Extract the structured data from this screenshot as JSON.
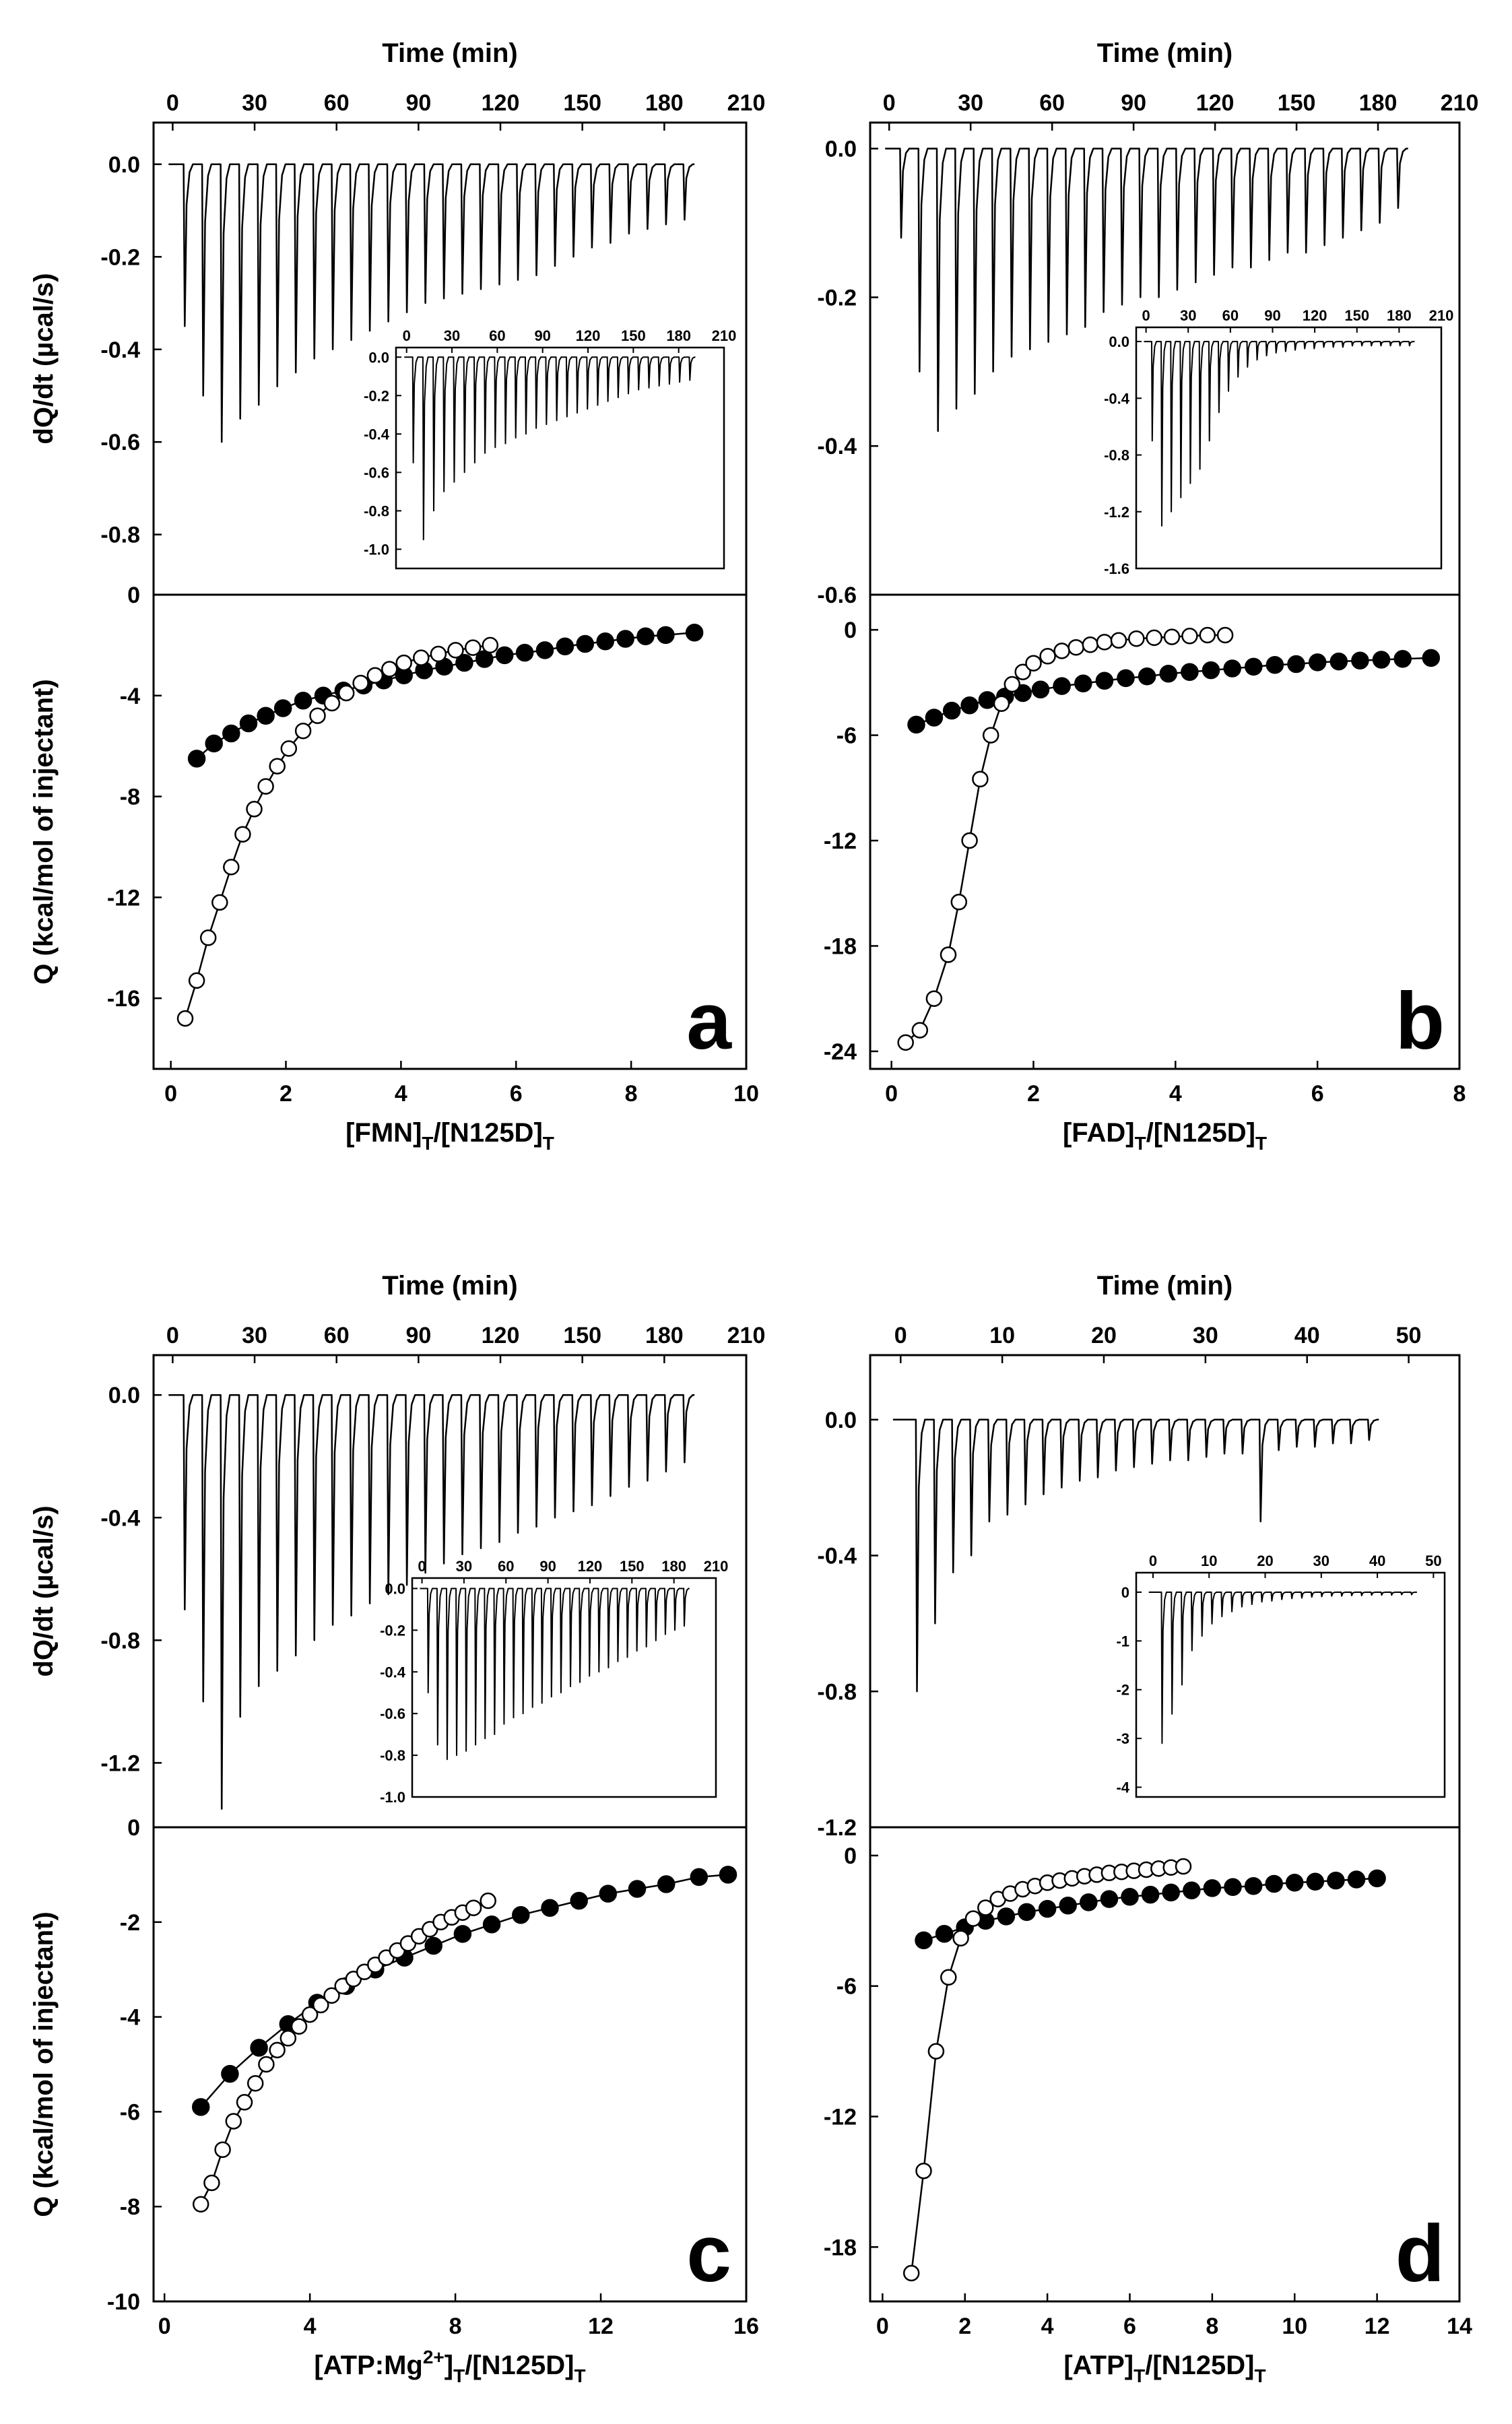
{
  "chart_data": [
    {
      "panel": "a",
      "type": "line",
      "top": {
        "xlabel": "Time (min)",
        "ylabel": "dQ/dt (µcal/s)",
        "xlim": [
          -7,
          210
        ],
        "xticks": [
          0,
          30,
          60,
          90,
          120,
          150,
          180,
          210
        ],
        "ylim": [
          -0.93,
          0.09
        ],
        "yticks": [
          0.0,
          -0.2,
          -0.4,
          -0.6,
          -0.8
        ],
        "n_injections": 28,
        "t_start": 4,
        "t_end": 187,
        "peaks": [
          -0.35,
          -0.5,
          -0.6,
          -0.55,
          -0.52,
          -0.48,
          -0.45,
          -0.42,
          -0.4,
          -0.38,
          -0.36,
          -0.34,
          -0.32,
          -0.3,
          -0.29,
          -0.28,
          -0.27,
          -0.26,
          -0.25,
          -0.24,
          -0.22,
          -0.2,
          -0.18,
          -0.17,
          -0.15,
          -0.14,
          -0.13,
          -0.12
        ],
        "inset": {
          "xlim": [
            -7,
            210
          ],
          "xticks": [
            0,
            30,
            60,
            90,
            120,
            150,
            180,
            210
          ],
          "ylim": [
            -1.1,
            0.05
          ],
          "yticks": [
            0.0,
            -0.2,
            -0.4,
            -0.6,
            -0.8,
            -1.0
          ],
          "n_injections": 28,
          "t_start": 4,
          "t_end": 187,
          "peaks": [
            -0.55,
            -0.95,
            -0.8,
            -0.7,
            -0.65,
            -0.6,
            -0.55,
            -0.5,
            -0.47,
            -0.45,
            -0.42,
            -0.4,
            -0.37,
            -0.35,
            -0.33,
            -0.31,
            -0.29,
            -0.27,
            -0.25,
            -0.23,
            -0.21,
            -0.19,
            -0.17,
            -0.16,
            -0.15,
            -0.14,
            -0.13,
            -0.12
          ]
        }
      },
      "bottom": {
        "xlabel": "[FMN]",
        "xlabel_sub": "T",
        "xlabel_mid": "/[N125D]",
        "xlabel_sub2": "T",
        "ylabel": "Q (kcal/mol of injectant)",
        "xlim": [
          -0.3,
          10
        ],
        "xticks": [
          0,
          2,
          4,
          6,
          8,
          10
        ],
        "ylim": [
          -18.8,
          0
        ],
        "yticks": [
          0,
          -4,
          -8,
          -12,
          -16
        ],
        "series": [
          {
            "name": "filled",
            "marker": "filled",
            "x": [
              0.45,
              0.75,
              1.05,
              1.35,
              1.65,
              1.95,
              2.3,
              2.65,
              3.0,
              3.35,
              3.7,
              4.05,
              4.4,
              4.75,
              5.1,
              5.45,
              5.8,
              6.15,
              6.5,
              6.85,
              7.2,
              7.55,
              7.9,
              8.25,
              8.6,
              9.1
            ],
            "y": [
              -6.5,
              -5.9,
              -5.5,
              -5.1,
              -4.8,
              -4.5,
              -4.2,
              -4.0,
              -3.8,
              -3.6,
              -3.4,
              -3.2,
              -3.0,
              -2.85,
              -2.7,
              -2.55,
              -2.4,
              -2.3,
              -2.2,
              -2.05,
              -1.95,
              -1.85,
              -1.75,
              -1.65,
              -1.6,
              -1.5
            ]
          },
          {
            "name": "open",
            "marker": "open",
            "x": [
              0.25,
              0.45,
              0.65,
              0.85,
              1.05,
              1.25,
              1.45,
              1.65,
              1.85,
              2.05,
              2.3,
              2.55,
              2.8,
              3.05,
              3.3,
              3.55,
              3.8,
              4.05,
              4.35,
              4.65,
              4.95,
              5.25,
              5.55
            ],
            "y": [
              -16.8,
              -15.3,
              -13.6,
              -12.2,
              -10.8,
              -9.5,
              -8.5,
              -7.6,
              -6.8,
              -6.1,
              -5.4,
              -4.8,
              -4.3,
              -3.9,
              -3.5,
              -3.2,
              -2.95,
              -2.7,
              -2.5,
              -2.35,
              -2.2,
              -2.1,
              -2.0
            ]
          }
        ],
        "label": "a"
      }
    },
    {
      "panel": "b",
      "type": "line",
      "top": {
        "xlabel": "Time (min)",
        "ylabel": "",
        "xlim": [
          -7,
          210
        ],
        "xticks": [
          0,
          30,
          60,
          90,
          120,
          150,
          180,
          210
        ],
        "ylim": [
          -0.6,
          0.035
        ],
        "yticks": [
          0.0,
          -0.2,
          -0.4,
          -0.6
        ],
        "n_injections": 28,
        "t_start": 4,
        "t_end": 187,
        "peaks": [
          -0.12,
          -0.3,
          -0.38,
          -0.35,
          -0.33,
          -0.3,
          -0.28,
          -0.27,
          -0.26,
          -0.25,
          -0.24,
          -0.22,
          -0.21,
          -0.2,
          -0.2,
          -0.19,
          -0.18,
          -0.17,
          -0.16,
          -0.16,
          -0.15,
          -0.14,
          -0.14,
          -0.13,
          -0.12,
          -0.11,
          -0.1,
          -0.08
        ],
        "inset": {
          "xlim": [
            -7,
            210
          ],
          "xticks": [
            0,
            30,
            60,
            90,
            120,
            150,
            180,
            210
          ],
          "ylim": [
            -1.6,
            0.1
          ],
          "yticks": [
            0.0,
            -0.4,
            -0.8,
            -1.2,
            -1.6
          ],
          "n_injections": 28,
          "t_start": 4,
          "t_end": 187,
          "peaks": [
            -0.7,
            -1.3,
            -1.2,
            -1.1,
            -1.0,
            -0.9,
            -0.7,
            -0.5,
            -0.35,
            -0.25,
            -0.18,
            -0.13,
            -0.1,
            -0.08,
            -0.07,
            -0.06,
            -0.05,
            -0.05,
            -0.04,
            -0.04,
            -0.04,
            -0.03,
            -0.03,
            -0.03,
            -0.03,
            -0.03,
            -0.03,
            -0.03
          ]
        }
      },
      "bottom": {
        "xlabel": "[FAD]",
        "xlabel_sub": "T",
        "xlabel_mid": "/[N125D]",
        "xlabel_sub2": "T",
        "ylabel": "",
        "xlim": [
          -0.3,
          8
        ],
        "xticks": [
          0,
          2,
          4,
          6,
          8
        ],
        "ylim": [
          -25,
          2
        ],
        "yticks": [
          0,
          -6,
          -12,
          -18,
          -24
        ],
        "series": [
          {
            "name": "filled",
            "marker": "filled",
            "x": [
              0.35,
              0.6,
              0.85,
              1.1,
              1.35,
              1.6,
              1.85,
              2.1,
              2.4,
              2.7,
              3.0,
              3.3,
              3.6,
              3.9,
              4.2,
              4.5,
              4.8,
              5.1,
              5.4,
              5.7,
              6.0,
              6.3,
              6.6,
              6.9,
              7.2,
              7.6
            ],
            "y": [
              -5.4,
              -5.0,
              -4.6,
              -4.3,
              -4.0,
              -3.8,
              -3.6,
              -3.4,
              -3.2,
              -3.05,
              -2.9,
              -2.75,
              -2.65,
              -2.5,
              -2.4,
              -2.3,
              -2.2,
              -2.1,
              -2.0,
              -1.95,
              -1.85,
              -1.8,
              -1.75,
              -1.7,
              -1.65,
              -1.6
            ]
          },
          {
            "name": "open",
            "marker": "open",
            "x": [
              0.2,
              0.4,
              0.6,
              0.8,
              0.95,
              1.1,
              1.25,
              1.4,
              1.55,
              1.7,
              1.85,
              2.0,
              2.2,
              2.4,
              2.6,
              2.8,
              3.0,
              3.2,
              3.45,
              3.7,
              3.95,
              4.2,
              4.45,
              4.7
            ],
            "y": [
              -23.5,
              -22.8,
              -21.0,
              -18.5,
              -15.5,
              -12.0,
              -8.5,
              -6.0,
              -4.2,
              -3.1,
              -2.4,
              -1.9,
              -1.5,
              -1.2,
              -1.0,
              -0.85,
              -0.7,
              -0.6,
              -0.5,
              -0.45,
              -0.4,
              -0.35,
              -0.3,
              -0.3
            ]
          }
        ],
        "label": "b"
      }
    },
    {
      "panel": "c",
      "type": "line",
      "top": {
        "xlabel": "Time (min)",
        "ylabel": "dQ/dt (µcal/s)",
        "xlim": [
          -7,
          210
        ],
        "xticks": [
          0,
          30,
          60,
          90,
          120,
          150,
          180,
          210
        ],
        "ylim": [
          -1.41,
          0.13
        ],
        "yticks": [
          0.0,
          -0.4,
          -0.8,
          -1.2
        ],
        "n_injections": 28,
        "t_start": 4,
        "t_end": 187,
        "peaks": [
          -0.7,
          -1.0,
          -1.35,
          -1.05,
          -0.95,
          -0.9,
          -0.85,
          -0.8,
          -0.75,
          -0.72,
          -0.68,
          -0.65,
          -0.62,
          -0.58,
          -0.55,
          -0.52,
          -0.5,
          -0.48,
          -0.45,
          -0.43,
          -0.4,
          -0.38,
          -0.36,
          -0.33,
          -0.3,
          -0.28,
          -0.25,
          -0.22
        ],
        "inset": {
          "xlim": [
            -7,
            210
          ],
          "xticks": [
            0,
            30,
            60,
            90,
            120,
            150,
            180,
            210
          ],
          "ylim": [
            -1.0,
            0.05
          ],
          "yticks": [
            0.0,
            -0.2,
            -0.4,
            -0.6,
            -0.8,
            -1.0
          ],
          "n_injections": 28,
          "t_start": 4,
          "t_end": 187,
          "peaks": [
            -0.5,
            -0.75,
            -0.82,
            -0.8,
            -0.78,
            -0.75,
            -0.72,
            -0.7,
            -0.65,
            -0.62,
            -0.6,
            -0.57,
            -0.55,
            -0.52,
            -0.5,
            -0.47,
            -0.45,
            -0.42,
            -0.4,
            -0.38,
            -0.35,
            -0.33,
            -0.3,
            -0.28,
            -0.25,
            -0.22,
            -0.2,
            -0.18
          ]
        }
      },
      "bottom": {
        "xlabel": "[ATP:Mg",
        "xlabel_sup": "2+",
        "xlabel_close": "]",
        "xlabel_sub": "T",
        "xlabel_mid": "/[N125D]",
        "xlabel_sub2": "T",
        "ylabel": "Q (kcal/mol of injectant)",
        "xlim": [
          -0.3,
          16
        ],
        "xticks": [
          0,
          4,
          8,
          12,
          16
        ],
        "ylim": [
          -10,
          0
        ],
        "yticks": [
          0,
          -2,
          -4,
          -6,
          -8,
          -10
        ],
        "series": [
          {
            "name": "filled",
            "marker": "filled",
            "x": [
              1.0,
              1.8,
              2.6,
              3.4,
              4.2,
              5.0,
              5.8,
              6.6,
              7.4,
              8.2,
              9.0,
              9.8,
              10.6,
              11.4,
              12.2,
              13.0,
              13.8,
              14.7,
              15.5
            ],
            "y": [
              -5.9,
              -5.2,
              -4.65,
              -4.15,
              -3.7,
              -3.35,
              -3.0,
              -2.75,
              -2.5,
              -2.25,
              -2.05,
              -1.85,
              -1.7,
              -1.55,
              -1.4,
              -1.3,
              -1.2,
              -1.05,
              -1.0
            ]
          },
          {
            "name": "open",
            "marker": "open",
            "x": [
              1.0,
              1.3,
              1.6,
              1.9,
              2.2,
              2.5,
              2.8,
              3.1,
              3.4,
              3.7,
              4.0,
              4.3,
              4.6,
              4.9,
              5.2,
              5.5,
              5.8,
              6.1,
              6.4,
              6.7,
              7.0,
              7.3,
              7.6,
              7.9,
              8.2,
              8.5,
              8.9
            ],
            "y": [
              -7.95,
              -7.5,
              -6.8,
              -6.2,
              -5.8,
              -5.4,
              -5.0,
              -4.7,
              -4.45,
              -4.2,
              -3.95,
              -3.75,
              -3.55,
              -3.35,
              -3.2,
              -3.05,
              -2.9,
              -2.75,
              -2.6,
              -2.45,
              -2.3,
              -2.15,
              -2.0,
              -1.9,
              -1.8,
              -1.7,
              -1.55
            ]
          }
        ],
        "label": "c"
      }
    },
    {
      "panel": "d",
      "type": "line",
      "top": {
        "xlabel": "Time (min)",
        "ylabel": "",
        "xlim": [
          -3,
          55
        ],
        "xticks": [
          0,
          10,
          20,
          30,
          40,
          50
        ],
        "ylim": [
          -1.2,
          0.19
        ],
        "yticks": [
          0.0,
          -0.4,
          -0.8,
          -1.2
        ],
        "n_injections": 26,
        "t_start": 1.5,
        "t_end": 46,
        "peaks": [
          -0.8,
          -0.6,
          -0.45,
          -0.4,
          -0.3,
          -0.28,
          -0.25,
          -0.22,
          -0.2,
          -0.18,
          -0.17,
          -0.15,
          -0.14,
          -0.13,
          -0.12,
          -0.12,
          -0.11,
          -0.1,
          -0.1,
          -0.3,
          -0.09,
          -0.08,
          -0.08,
          -0.07,
          -0.07,
          -0.06
        ],
        "inset": {
          "xlim": [
            -3,
            52
          ],
          "xticks": [
            0,
            10,
            20,
            30,
            40,
            50
          ],
          "ylim": [
            -4.2,
            0.4
          ],
          "yticks": [
            0,
            -1,
            -2,
            -3,
            -4
          ],
          "n_injections": 26,
          "t_start": 1.5,
          "t_end": 46,
          "peaks": [
            -3.1,
            -2.5,
            -1.9,
            -1.2,
            -0.9,
            -0.65,
            -0.5,
            -0.4,
            -0.3,
            -0.25,
            -0.2,
            -0.18,
            -0.15,
            -0.13,
            -0.12,
            -0.1,
            -0.09,
            -0.08,
            -0.08,
            -0.07,
            -0.07,
            -0.06,
            -0.06,
            -0.06,
            -0.05,
            -0.05
          ]
        }
      },
      "bottom": {
        "xlabel": "[ATP]",
        "xlabel_sub": "T",
        "xlabel_mid": "/[N125D]",
        "xlabel_sub2": "T",
        "ylabel": "",
        "xlim": [
          -0.3,
          14
        ],
        "xticks": [
          0,
          2,
          4,
          6,
          8,
          10,
          12,
          14
        ],
        "ylim": [
          -20.5,
          1.3
        ],
        "yticks": [
          0,
          -6,
          -12,
          -18
        ],
        "series": [
          {
            "name": "filled",
            "marker": "filled",
            "x": [
              1.0,
              1.5,
              2.0,
              2.5,
              3.0,
              3.5,
              4.0,
              4.5,
              5.0,
              5.5,
              6.0,
              6.5,
              7.0,
              7.5,
              8.0,
              8.5,
              9.0,
              9.5,
              10.0,
              10.5,
              11.0,
              11.5,
              12.0
            ],
            "y": [
              -3.9,
              -3.6,
              -3.3,
              -3.0,
              -2.8,
              -2.6,
              -2.45,
              -2.3,
              -2.15,
              -2.0,
              -1.9,
              -1.8,
              -1.7,
              -1.6,
              -1.5,
              -1.45,
              -1.4,
              -1.3,
              -1.25,
              -1.2,
              -1.15,
              -1.1,
              -1.05
            ]
          },
          {
            "name": "open",
            "marker": "open",
            "x": [
              0.7,
              1.0,
              1.3,
              1.6,
              1.9,
              2.2,
              2.5,
              2.8,
              3.1,
              3.4,
              3.7,
              4.0,
              4.3,
              4.6,
              4.9,
              5.2,
              5.5,
              5.8,
              6.1,
              6.4,
              6.7,
              7.0,
              7.3
            ],
            "y": [
              -19.2,
              -14.5,
              -9.0,
              -5.6,
              -3.8,
              -2.9,
              -2.4,
              -2.0,
              -1.75,
              -1.55,
              -1.4,
              -1.25,
              -1.15,
              -1.05,
              -0.95,
              -0.88,
              -0.8,
              -0.75,
              -0.7,
              -0.65,
              -0.6,
              -0.55,
              -0.5
            ]
          }
        ],
        "label": "d"
      }
    }
  ]
}
